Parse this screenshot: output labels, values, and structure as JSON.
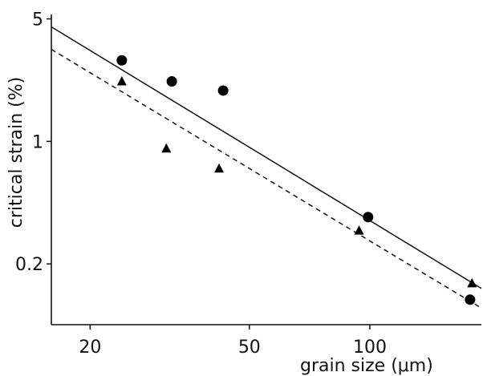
{
  "chart_data": {
    "type": "scatter",
    "title": "",
    "xlabel": "grain size (μm)",
    "ylabel": "critical strain (%)",
    "xscale": "log",
    "yscale": "log",
    "xlim": [
      16,
      190
    ],
    "ylim": [
      0.09,
      5.3
    ],
    "xticks": [
      20,
      50,
      100
    ],
    "xtick_labels": [
      "20",
      "50",
      "100"
    ],
    "yticks": [
      0.2,
      1,
      5
    ],
    "ytick_labels": [
      "0.2",
      "1",
      "5"
    ],
    "grid": false,
    "series": [
      {
        "marker": "circle",
        "points": [
          {
            "x": 24,
            "y": 2.9
          },
          {
            "x": 32,
            "y": 2.2
          },
          {
            "x": 43,
            "y": 1.95
          },
          {
            "x": 99,
            "y": 0.37
          },
          {
            "x": 178,
            "y": 0.125
          }
        ],
        "fit": {
          "style": "solid",
          "from": {
            "x": 16,
            "y": 4.5
          },
          "to": {
            "x": 190,
            "y": 0.145
          }
        }
      },
      {
        "marker": "triangle",
        "points": [
          {
            "x": 24,
            "y": 2.2
          },
          {
            "x": 31,
            "y": 0.91
          },
          {
            "x": 42,
            "y": 0.7
          },
          {
            "x": 94,
            "y": 0.31
          },
          {
            "x": 180,
            "y": 0.155
          }
        ],
        "fit": {
          "style": "dashed",
          "from": {
            "x": 16,
            "y": 3.35
          },
          "to": {
            "x": 190,
            "y": 0.112
          }
        }
      }
    ]
  }
}
